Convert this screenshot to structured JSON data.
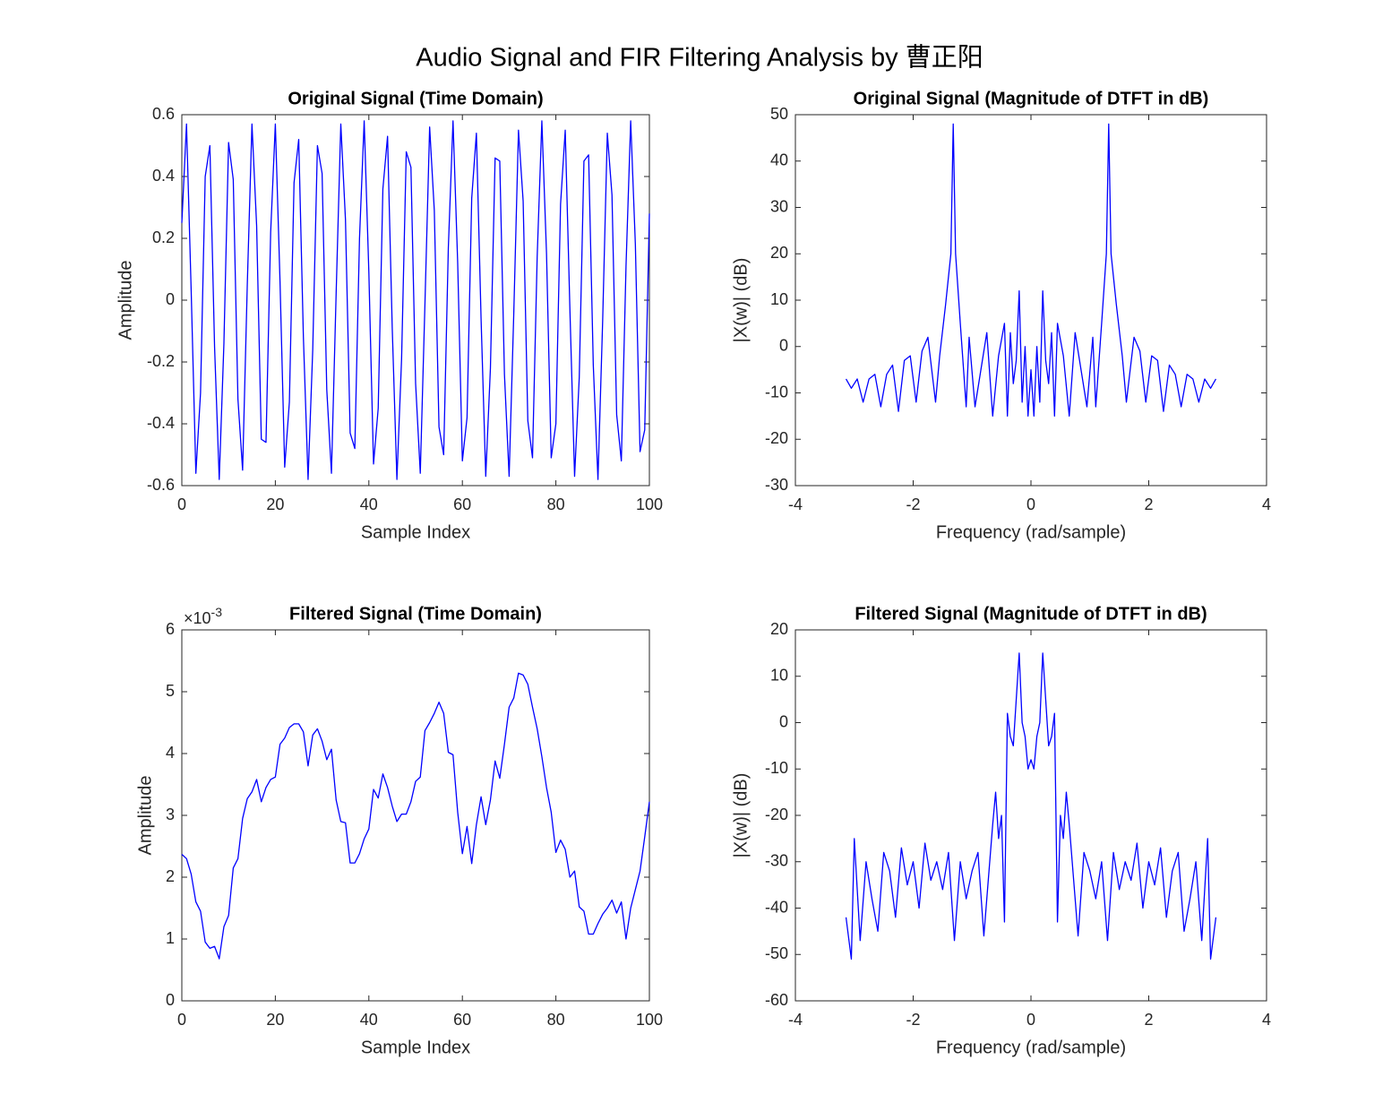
{
  "title": "Audio Signal and FIR Filtering Analysis by 曹正阳",
  "chart_data": [
    {
      "type": "line",
      "title": "Original Signal (Time Domain)",
      "xlabel": "Sample Index",
      "ylabel": "Amplitude",
      "color": "#0000ff",
      "grid": false,
      "xlim": [
        0,
        100
      ],
      "xticks": [
        0,
        20,
        40,
        60,
        80,
        100
      ],
      "ylim": [
        -0.6,
        0.6
      ],
      "yticks": [
        -0.6,
        -0.4,
        -0.2,
        0,
        0.2,
        0.4,
        0.6
      ],
      "x": [
        0,
        1,
        2,
        3,
        4,
        5,
        6,
        7,
        8,
        9,
        10,
        11,
        12,
        13,
        14,
        15,
        16,
        17,
        18,
        19,
        20,
        21,
        22,
        23,
        24,
        25,
        26,
        27,
        28,
        29,
        30,
        31,
        32,
        33,
        34,
        35,
        36,
        37,
        38,
        39,
        40,
        41,
        42,
        43,
        44,
        45,
        46,
        47,
        48,
        49,
        50,
        51,
        52,
        53,
        54,
        55,
        56,
        57,
        58,
        59,
        60,
        61,
        62,
        63,
        64,
        65,
        66,
        67,
        68,
        69,
        70,
        71,
        72,
        73,
        74,
        75,
        76,
        77,
        78,
        79,
        80,
        81,
        82,
        83,
        84,
        85,
        86,
        87,
        88,
        89,
        90,
        91,
        92,
        93,
        94,
        95,
        96,
        97,
        98,
        99,
        100
      ],
      "values": [
        0.25,
        0.57,
        0.03,
        -0.56,
        -0.3,
        0.4,
        0.5,
        -0.15,
        -0.58,
        -0.14,
        0.51,
        0.39,
        -0.32,
        -0.55,
        0.05,
        0.57,
        0.24,
        -0.45,
        -0.46,
        0.22,
        0.57,
        0.06,
        -0.54,
        -0.33,
        0.38,
        0.52,
        -0.12,
        -0.58,
        -0.16,
        0.5,
        0.41,
        -0.29,
        -0.56,
        0.02,
        0.57,
        0.26,
        -0.43,
        -0.48,
        0.2,
        0.58,
        0.09,
        -0.53,
        -0.35,
        0.36,
        0.53,
        -0.09,
        -0.58,
        -0.19,
        0.48,
        0.43,
        -0.27,
        -0.56,
        -0.01,
        0.56,
        0.29,
        -0.41,
        -0.5,
        0.17,
        0.58,
        0.12,
        -0.52,
        -0.38,
        0.33,
        0.54,
        -0.06,
        -0.57,
        -0.22,
        0.46,
        0.45,
        -0.24,
        -0.57,
        -0.04,
        0.55,
        0.32,
        -0.39,
        -0.51,
        0.14,
        0.58,
        0.15,
        -0.51,
        -0.4,
        0.31,
        0.55,
        -0.03,
        -0.57,
        -0.25,
        0.45,
        0.47,
        -0.21,
        -0.58,
        -0.07,
        0.54,
        0.34,
        -0.37,
        -0.52,
        0.11,
        0.58,
        0.18,
        -0.49,
        -0.42,
        0.28
      ]
    },
    {
      "type": "line",
      "title": "Original Signal (Magnitude of DTFT in dB)",
      "xlabel": "Frequency (rad/sample)",
      "ylabel": "|X(w)| (dB)",
      "color": "#0000ff",
      "grid": false,
      "xlim": [
        -4,
        4
      ],
      "xticks": [
        -4,
        -2,
        0,
        2,
        4
      ],
      "ylim": [
        -30,
        50
      ],
      "yticks": [
        -30,
        -20,
        -10,
        0,
        10,
        20,
        30,
        40,
        50
      ],
      "x": [
        -3.14,
        -3.05,
        -2.95,
        -2.85,
        -2.75,
        -2.65,
        -2.55,
        -2.45,
        -2.35,
        -2.25,
        -2.15,
        -2.05,
        -1.95,
        -1.85,
        -1.75,
        -1.62,
        -1.55,
        -1.45,
        -1.36,
        -1.32,
        -1.28,
        -1.2,
        -1.1,
        -1.05,
        -0.95,
        -0.85,
        -0.75,
        -0.65,
        -0.55,
        -0.45,
        -0.4,
        -0.35,
        -0.3,
        -0.25,
        -0.2,
        -0.15,
        -0.1,
        -0.05,
        0,
        0.05,
        0.1,
        0.15,
        0.2,
        0.25,
        0.3,
        0.35,
        0.4,
        0.45,
        0.55,
        0.65,
        0.75,
        0.85,
        0.95,
        1.05,
        1.1,
        1.2,
        1.28,
        1.32,
        1.36,
        1.45,
        1.55,
        1.62,
        1.75,
        1.85,
        1.95,
        2.05,
        2.15,
        2.25,
        2.35,
        2.45,
        2.55,
        2.65,
        2.75,
        2.85,
        2.95,
        3.05,
        3.14
      ],
      "values": [
        -7,
        -9,
        -7,
        -12,
        -7,
        -6,
        -13,
        -6,
        -4,
        -14,
        -3,
        -2,
        -12,
        -1,
        2,
        -12,
        -2,
        9,
        20,
        48,
        20,
        5,
        -13,
        2,
        -13,
        -5,
        3,
        -15,
        -2,
        5,
        -15,
        3,
        -8,
        -3,
        12,
        -12,
        0,
        -15,
        -5,
        -15,
        0,
        -12,
        12,
        -3,
        -8,
        3,
        -15,
        5,
        -2,
        -15,
        3,
        -5,
        -13,
        2,
        -13,
        5,
        20,
        48,
        20,
        9,
        -2,
        -12,
        2,
        -1,
        -12,
        -2,
        -3,
        -14,
        -4,
        -6,
        -13,
        -6,
        -7,
        -12,
        -7,
        -9,
        -7
      ]
    },
    {
      "type": "line",
      "title": "Filtered Signal (Time Domain)",
      "xlabel": "Sample Index",
      "ylabel": "Amplitude",
      "color": "#0000ff",
      "grid": false,
      "y_multiplier": {
        "base": "×10",
        "exponent": "-3"
      },
      "xlim": [
        0,
        100
      ],
      "xticks": [
        0,
        20,
        40,
        60,
        80,
        100
      ],
      "ylim": [
        0,
        0.006
      ],
      "yticks": [
        {
          "value": 0,
          "label": "0"
        },
        {
          "value": 0.001,
          "label": "1"
        },
        {
          "value": 0.002,
          "label": "2"
        },
        {
          "value": 0.003,
          "label": "3"
        },
        {
          "value": 0.004,
          "label": "4"
        },
        {
          "value": 0.005,
          "label": "5"
        },
        {
          "value": 0.006,
          "label": "6"
        }
      ],
      "x": [
        0,
        1,
        2,
        3,
        4,
        5,
        6,
        7,
        8,
        9,
        10,
        11,
        12,
        13,
        14,
        15,
        16,
        17,
        18,
        19,
        20,
        21,
        22,
        23,
        24,
        25,
        26,
        27,
        28,
        29,
        30,
        31,
        32,
        33,
        34,
        35,
        36,
        37,
        38,
        39,
        40,
        41,
        42,
        43,
        44,
        45,
        46,
        47,
        48,
        49,
        50,
        51,
        52,
        53,
        54,
        55,
        56,
        57,
        58,
        59,
        60,
        61,
        62,
        63,
        64,
        65,
        66,
        67,
        68,
        69,
        70,
        71,
        72,
        73,
        74,
        75,
        76,
        77,
        78,
        79,
        80,
        81,
        82,
        83,
        84,
        85,
        86,
        87,
        88,
        89,
        90,
        91,
        92,
        93,
        94,
        95,
        96,
        97,
        98,
        99,
        100
      ],
      "values": [
        0.00237,
        0.0023,
        0.00205,
        0.0016,
        0.00145,
        0.00095,
        0.00085,
        0.00088,
        0.00068,
        0.0012,
        0.00138,
        0.00215,
        0.0023,
        0.00295,
        0.00327,
        0.00338,
        0.00358,
        0.00322,
        0.00345,
        0.00358,
        0.00362,
        0.00415,
        0.00425,
        0.00442,
        0.00448,
        0.00448,
        0.00435,
        0.0038,
        0.0043,
        0.0044,
        0.0042,
        0.0039,
        0.00407,
        0.00325,
        0.0029,
        0.00288,
        0.00223,
        0.00223,
        0.00238,
        0.00262,
        0.00278,
        0.00342,
        0.00328,
        0.00367,
        0.00345,
        0.00315,
        0.0029,
        0.00302,
        0.00302,
        0.00322,
        0.00355,
        0.00362,
        0.00437,
        0.0045,
        0.00465,
        0.00483,
        0.00465,
        0.00402,
        0.00398,
        0.00305,
        0.00238,
        0.00282,
        0.00222,
        0.00285,
        0.0033,
        0.00285,
        0.00325,
        0.00388,
        0.0036,
        0.00415,
        0.00475,
        0.0049,
        0.0053,
        0.00527,
        0.00512,
        0.00475,
        0.0044,
        0.00395,
        0.00345,
        0.00305,
        0.0024,
        0.0026,
        0.00245,
        0.002,
        0.0021,
        0.00152,
        0.00145,
        0.00108,
        0.00108,
        0.00125,
        0.0014,
        0.0015,
        0.00163,
        0.00142,
        0.0016,
        0.001,
        0.0015,
        0.0018,
        0.0021,
        0.00265,
        0.00322
      ]
    },
    {
      "type": "line",
      "title": "Filtered Signal (Magnitude of DTFT in dB)",
      "xlabel": "Frequency (rad/sample)",
      "ylabel": "|X(w)| (dB)",
      "color": "#0000ff",
      "grid": false,
      "xlim": [
        -4,
        4
      ],
      "xticks": [
        -4,
        -2,
        0,
        2,
        4
      ],
      "ylim": [
        -60,
        20
      ],
      "yticks": [
        -60,
        -50,
        -40,
        -30,
        -20,
        -10,
        0,
        10,
        20
      ],
      "x": [
        -3.14,
        -3.05,
        -3,
        -2.9,
        -2.8,
        -2.7,
        -2.6,
        -2.5,
        -2.4,
        -2.3,
        -2.2,
        -2.1,
        -2,
        -1.9,
        -1.8,
        -1.7,
        -1.6,
        -1.5,
        -1.4,
        -1.3,
        -1.2,
        -1.1,
        -1,
        -0.9,
        -0.8,
        -0.7,
        -0.65,
        -0.6,
        -0.55,
        -0.5,
        -0.45,
        -0.4,
        -0.35,
        -0.3,
        -0.25,
        -0.2,
        -0.15,
        -0.1,
        -0.05,
        0,
        0.05,
        0.1,
        0.15,
        0.2,
        0.25,
        0.3,
        0.35,
        0.4,
        0.45,
        0.5,
        0.55,
        0.6,
        0.65,
        0.7,
        0.8,
        0.9,
        1,
        1.1,
        1.2,
        1.3,
        1.4,
        1.5,
        1.6,
        1.7,
        1.8,
        1.9,
        2,
        2.1,
        2.2,
        2.3,
        2.4,
        2.5,
        2.6,
        2.7,
        2.8,
        2.9,
        3,
        3.05,
        3.14
      ],
      "values": [
        -42,
        -51,
        -25,
        -47,
        -30,
        -38,
        -45,
        -28,
        -32,
        -42,
        -27,
        -35,
        -30,
        -40,
        -26,
        -34,
        -30,
        -36,
        -28,
        -47,
        -30,
        -38,
        -32,
        -28,
        -46,
        -30,
        -22,
        -15,
        -25,
        -20,
        -43,
        2,
        -3,
        -5,
        5,
        15,
        0,
        -3,
        -10,
        -8,
        -10,
        -3,
        0,
        15,
        5,
        -5,
        -3,
        2,
        -43,
        -20,
        -25,
        -15,
        -22,
        -30,
        -46,
        -28,
        -32,
        -38,
        -30,
        -47,
        -28,
        -36,
        -30,
        -34,
        -26,
        -40,
        -30,
        -35,
        -27,
        -42,
        -32,
        -28,
        -45,
        -38,
        -30,
        -47,
        -25,
        -51,
        -42
      ]
    }
  ]
}
